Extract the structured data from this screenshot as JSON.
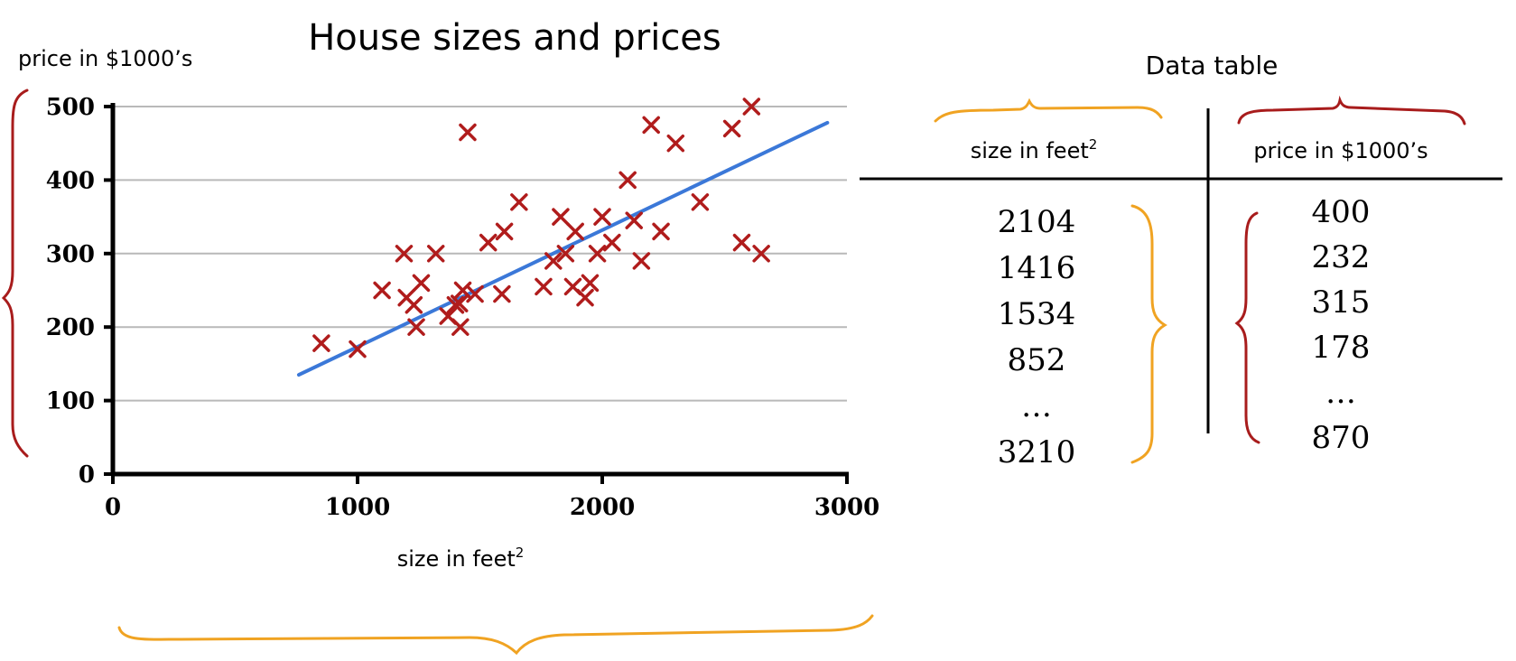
{
  "chart_data": {
    "type": "scatter",
    "title": "House sizes and prices",
    "ylabel": "price in $1000’s",
    "xlabel": "size in feet",
    "xlabel_superscript": "2",
    "xlim": [
      0,
      3000
    ],
    "ylim": [
      0,
      500
    ],
    "xticks": [
      "0",
      "1000",
      "2000",
      "3000"
    ],
    "yticks": [
      "0",
      "100",
      "200",
      "300",
      "400",
      "500"
    ],
    "grid": true,
    "points": [
      {
        "x": 852,
        "y": 178
      },
      {
        "x": 1000,
        "y": 170
      },
      {
        "x": 1100,
        "y": 250
      },
      {
        "x": 1190,
        "y": 300
      },
      {
        "x": 1200,
        "y": 240
      },
      {
        "x": 1230,
        "y": 230
      },
      {
        "x": 1240,
        "y": 200
      },
      {
        "x": 1260,
        "y": 260
      },
      {
        "x": 1320,
        "y": 300
      },
      {
        "x": 1370,
        "y": 215
      },
      {
        "x": 1400,
        "y": 230
      },
      {
        "x": 1420,
        "y": 200
      },
      {
        "x": 1416,
        "y": 232
      },
      {
        "x": 1430,
        "y": 250
      },
      {
        "x": 1450,
        "y": 465
      },
      {
        "x": 1480,
        "y": 245
      },
      {
        "x": 1534,
        "y": 315
      },
      {
        "x": 1590,
        "y": 245
      },
      {
        "x": 1600,
        "y": 330
      },
      {
        "x": 1660,
        "y": 370
      },
      {
        "x": 1760,
        "y": 255
      },
      {
        "x": 1800,
        "y": 290
      },
      {
        "x": 1830,
        "y": 350
      },
      {
        "x": 1850,
        "y": 300
      },
      {
        "x": 1880,
        "y": 255
      },
      {
        "x": 1890,
        "y": 330
      },
      {
        "x": 1930,
        "y": 240
      },
      {
        "x": 1950,
        "y": 260
      },
      {
        "x": 1980,
        "y": 300
      },
      {
        "x": 2000,
        "y": 350
      },
      {
        "x": 2040,
        "y": 315
      },
      {
        "x": 2104,
        "y": 400
      },
      {
        "x": 2130,
        "y": 345
      },
      {
        "x": 2160,
        "y": 290
      },
      {
        "x": 2200,
        "y": 475
      },
      {
        "x": 2240,
        "y": 330
      },
      {
        "x": 2300,
        "y": 450
      },
      {
        "x": 2400,
        "y": 370
      },
      {
        "x": 2530,
        "y": 470
      },
      {
        "x": 2570,
        "y": 315
      },
      {
        "x": 2610,
        "y": 500
      },
      {
        "x": 2650,
        "y": 300
      }
    ],
    "fit_line": {
      "x": [
        760,
        2920
      ],
      "y": [
        135,
        478
      ]
    },
    "series_colors": {
      "points": "#b01c1c",
      "fit_line": "#3b78d8"
    }
  },
  "data_table": {
    "title": "Data table",
    "headers": [
      "size in feet",
      "price in $1000’s"
    ],
    "size_header_superscript": "2",
    "size_values": [
      "2104",
      "1416",
      "1534",
      "852",
      "…",
      "3210"
    ],
    "price_values": [
      "400",
      "232",
      "315",
      "178",
      "…",
      "870"
    ]
  },
  "annotation_colors": {
    "orange": "#f0a322",
    "red": "#a81c1c"
  }
}
